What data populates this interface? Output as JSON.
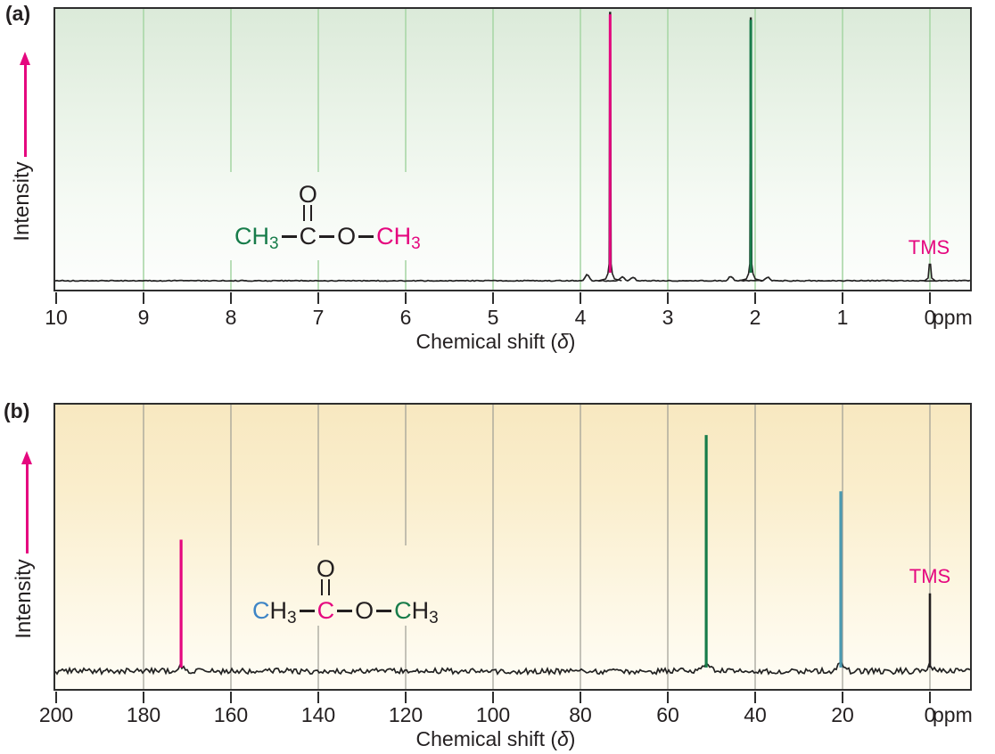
{
  "figure": {
    "panel_a_label": "(a)",
    "panel_b_label": "(b)",
    "y_axis_label": "Intensity",
    "x_axis_title_prefix": "Chemical shift (",
    "x_axis_title_delta": "δ",
    "x_axis_title_suffix": ")",
    "unit_label": "ppm",
    "tms_label": "TMS"
  },
  "colors": {
    "magenta": "#e5077f",
    "dark_green": "#177c4a",
    "teal_blue_peak": "#4a9ab1",
    "atom_blue": "#3d85c6",
    "ink": "#231f20",
    "grid_green": "#a9d7a7",
    "grid_gray": "#9d9d94"
  },
  "chart_data": [
    {
      "id": "a",
      "type": "line",
      "xlim": [
        10,
        0
      ],
      "x_tick_labels": [
        "10",
        "9",
        "8",
        "7",
        "6",
        "5",
        "4",
        "3",
        "2",
        "1",
        "0"
      ],
      "gridlines": [
        9,
        8,
        7,
        6,
        5,
        4,
        3,
        2,
        1,
        0
      ],
      "gridline_gaps": [
        8,
        7,
        6
      ],
      "peaks": [
        {
          "x": 3.66,
          "height": 0.98,
          "color": "#e5077f"
        },
        {
          "x": 2.05,
          "height": 0.96,
          "color": "#177c4a"
        },
        {
          "x": 0.0,
          "height": 0.06,
          "color": "#231f20",
          "label": "TMS"
        }
      ],
      "minor_peaks": [
        {
          "x": 3.92,
          "h": 7
        },
        {
          "x": 3.52,
          "h": 4
        },
        {
          "x": 3.4,
          "h": 4
        },
        {
          "x": 2.28,
          "h": 5
        },
        {
          "x": 1.86,
          "h": 4
        }
      ],
      "noise_amplitude": 0.5,
      "molecule": {
        "carbonyl_o": "O",
        "tokens": [
          {
            "text": "CH",
            "sub": "3",
            "color": "#177c4a"
          },
          {
            "bond": true
          },
          {
            "text": "C",
            "carbonyl": true,
            "color": "#231f20"
          },
          {
            "bond": true
          },
          {
            "text": "O",
            "color": "#231f20"
          },
          {
            "bond": true
          },
          {
            "text": "CH",
            "sub": "3",
            "color": "#e5077f"
          }
        ]
      }
    },
    {
      "id": "b",
      "type": "line",
      "xlim": [
        200,
        0
      ],
      "x_tick_labels": [
        "200",
        "180",
        "160",
        "140",
        "120",
        "100",
        "80",
        "60",
        "40",
        "20",
        "0"
      ],
      "gridlines": [
        180,
        160,
        140,
        120,
        100,
        80,
        60,
        40,
        20,
        0
      ],
      "gridline_gaps": [
        140,
        120
      ],
      "peaks": [
        {
          "x": 171.4,
          "height": 0.49,
          "color": "#e5077f"
        },
        {
          "x": 51.2,
          "height": 0.88,
          "color": "#177c4a"
        },
        {
          "x": 20.4,
          "height": 0.67,
          "color": "#4a9ab1"
        },
        {
          "x": 0.0,
          "height": 0.29,
          "color": "#231f20",
          "label": "TMS"
        }
      ],
      "minor_peaks": [],
      "noise_amplitude": 3.2,
      "molecule": {
        "carbonyl_o": "O",
        "tokens": [
          {
            "text": "C",
            "color": "#3d85c6"
          },
          {
            "text": "H",
            "sub": "3",
            "color": "#231f20"
          },
          {
            "bond": true
          },
          {
            "text": "C",
            "carbonyl": true,
            "color": "#e5077f"
          },
          {
            "bond": true
          },
          {
            "text": "O",
            "color": "#231f20"
          },
          {
            "bond": true
          },
          {
            "text": "C",
            "color": "#177c4a"
          },
          {
            "text": "H",
            "sub": "3",
            "color": "#231f20"
          }
        ]
      }
    }
  ]
}
